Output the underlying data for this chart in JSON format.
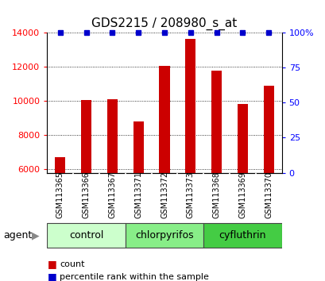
{
  "title": "GDS2215 / 208980_s_at",
  "samples": [
    "GSM113365",
    "GSM113366",
    "GSM113367",
    "GSM113371",
    "GSM113372",
    "GSM113373",
    "GSM113368",
    "GSM113369",
    "GSM113370"
  ],
  "counts": [
    6700,
    10050,
    10100,
    8800,
    12050,
    13600,
    11750,
    9800,
    10900
  ],
  "percentile_ranks": [
    100,
    100,
    100,
    100,
    100,
    100,
    100,
    100,
    100
  ],
  "ylim_left": [
    5800,
    14000
  ],
  "ylim_right": [
    0,
    100
  ],
  "yticks_left": [
    6000,
    8000,
    10000,
    12000,
    14000
  ],
  "ytick_labels_left": [
    "6000",
    "8000",
    "10000",
    "12000",
    "14000"
  ],
  "yticks_right": [
    0,
    25,
    50,
    75,
    100
  ],
  "ytick_labels_right": [
    "0",
    "25",
    "50",
    "75",
    "100%"
  ],
  "bar_color": "#cc0000",
  "dot_color": "#0000cc",
  "groups": [
    {
      "label": "control",
      "start": 0,
      "end": 3,
      "color": "#ccffcc"
    },
    {
      "label": "chlorpyrifos",
      "start": 3,
      "end": 6,
      "color": "#88ee88"
    },
    {
      "label": "cyfluthrin",
      "start": 6,
      "end": 9,
      "color": "#44cc44"
    }
  ],
  "agent_label": "agent",
  "legend_count_label": "count",
  "legend_percentile_label": "percentile rank within the sample",
  "bar_width": 0.4,
  "label_area_color": "#c8c8c8",
  "title_fontsize": 11,
  "tick_fontsize": 8,
  "sample_fontsize": 7,
  "group_fontsize": 9,
  "legend_fontsize": 8
}
